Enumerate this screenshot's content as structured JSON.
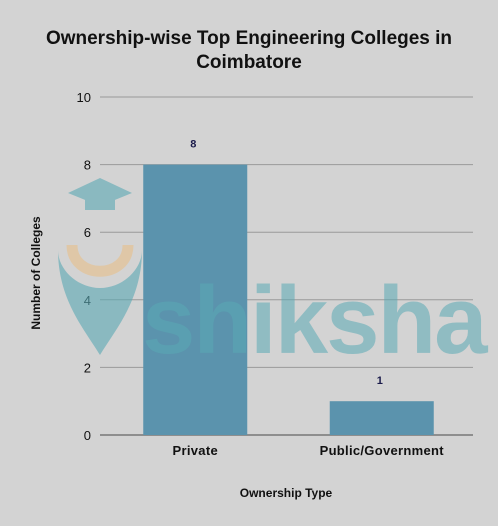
{
  "chart_data": {
    "type": "bar",
    "title": "Ownership-wise Top Engineering Colleges in Coimbatore",
    "title_lines": [
      "Ownership-wise Top Engineering Colleges in",
      "Coimbatore"
    ],
    "xlabel": "Ownership Type",
    "ylabel": "Number of Colleges",
    "categories": [
      "Private",
      "Public/Government"
    ],
    "values": [
      8,
      1
    ],
    "value_labels": [
      "8",
      "1"
    ],
    "ylim": [
      0,
      10
    ],
    "yticks": [
      0,
      2,
      4,
      6,
      8,
      10
    ],
    "grid": true,
    "bar_color": "#5b93ad",
    "grid_color": "#9a9a9a"
  },
  "watermark": {
    "text": "shiksha",
    "icon": "graduation-cap-logo-icon",
    "color": "#5aa9b4",
    "accent": "#e8c08a"
  }
}
